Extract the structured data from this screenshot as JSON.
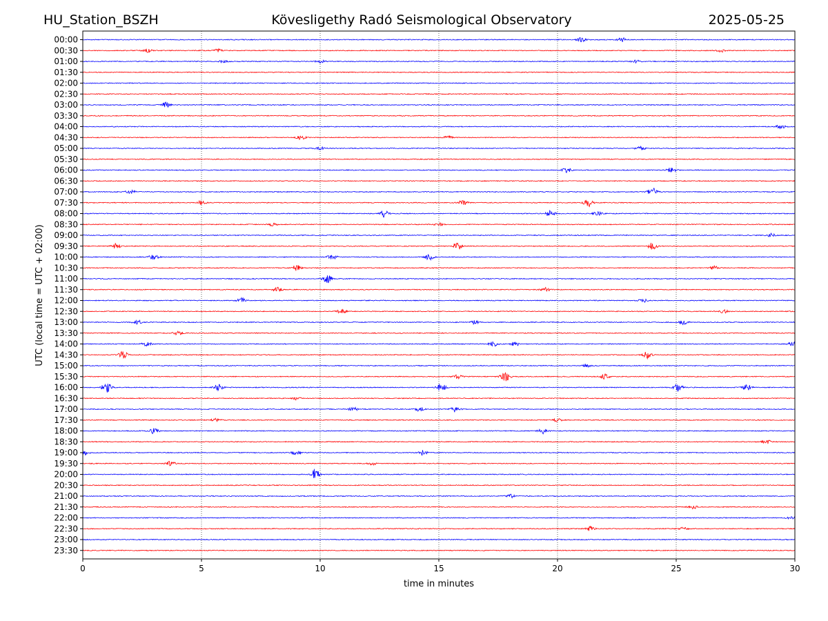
{
  "chart_data": {
    "type": "line",
    "title_left": "HU_Station_BSZH",
    "title_center": "Kövesligethy Radó Seismological Observatory",
    "title_right": "2025-05-25",
    "xlabel": "time in minutes",
    "ylabel": "UTC (local time = UTC + 02:00)",
    "xlim": [
      0,
      30
    ],
    "x_ticks": [
      0,
      5,
      10,
      15,
      20,
      25,
      30
    ],
    "grid": "vertical dotted lines at x ticks",
    "colors": {
      "even_rows": "#0000ff",
      "odd_rows": "#ff0000",
      "axis": "#000000"
    },
    "rows": [
      {
        "label": "00:00",
        "events": [
          {
            "t": 21.0,
            "amp": 3
          },
          {
            "t": 22.7,
            "amp": 3
          }
        ]
      },
      {
        "label": "00:30",
        "events": [
          {
            "t": 2.7,
            "amp": 2.5
          },
          {
            "t": 5.7,
            "amp": 2
          },
          {
            "t": 26.9,
            "amp": 2
          }
        ]
      },
      {
        "label": "01:00",
        "events": [
          {
            "t": 5.9,
            "amp": 2
          },
          {
            "t": 10.0,
            "amp": 2
          },
          {
            "t": 23.3,
            "amp": 2
          }
        ]
      },
      {
        "label": "01:30",
        "events": []
      },
      {
        "label": "02:00",
        "events": []
      },
      {
        "label": "02:30",
        "events": []
      },
      {
        "label": "03:00",
        "events": [
          {
            "t": 3.5,
            "amp": 4
          }
        ]
      },
      {
        "label": "03:30",
        "events": []
      },
      {
        "label": "04:00",
        "events": [
          {
            "t": 29.4,
            "amp": 3
          }
        ]
      },
      {
        "label": "04:30",
        "events": [
          {
            "t": 9.2,
            "amp": 3
          },
          {
            "t": 15.4,
            "amp": 2
          }
        ]
      },
      {
        "label": "05:00",
        "events": [
          {
            "t": 10.0,
            "amp": 2
          },
          {
            "t": 23.5,
            "amp": 4
          }
        ]
      },
      {
        "label": "05:30",
        "events": []
      },
      {
        "label": "06:00",
        "events": [
          {
            "t": 20.4,
            "amp": 4
          },
          {
            "t": 24.8,
            "amp": 4
          }
        ]
      },
      {
        "label": "06:30",
        "events": []
      },
      {
        "label": "07:00",
        "events": [
          {
            "t": 2.0,
            "amp": 3
          },
          {
            "t": 24.0,
            "amp": 6
          }
        ]
      },
      {
        "label": "07:30",
        "events": [
          {
            "t": 5.0,
            "amp": 3
          },
          {
            "t": 16.0,
            "amp": 4
          },
          {
            "t": 21.3,
            "amp": 6
          }
        ]
      },
      {
        "label": "08:00",
        "events": [
          {
            "t": 12.7,
            "amp": 5
          },
          {
            "t": 19.7,
            "amp": 5
          },
          {
            "t": 21.7,
            "amp": 3
          }
        ]
      },
      {
        "label": "08:30",
        "events": [
          {
            "t": 8.0,
            "amp": 2
          },
          {
            "t": 15.0,
            "amp": 2
          }
        ]
      },
      {
        "label": "09:00",
        "events": [
          {
            "t": 29.0,
            "amp": 2.5
          }
        ]
      },
      {
        "label": "09:30",
        "events": [
          {
            "t": 1.4,
            "amp": 4
          },
          {
            "t": 15.8,
            "amp": 5
          },
          {
            "t": 24.0,
            "amp": 5
          }
        ]
      },
      {
        "label": "10:00",
        "events": [
          {
            "t": 3.0,
            "amp": 4
          },
          {
            "t": 10.5,
            "amp": 4
          },
          {
            "t": 14.6,
            "amp": 4
          }
        ]
      },
      {
        "label": "10:30",
        "events": [
          {
            "t": 9.0,
            "amp": 4
          },
          {
            "t": 26.6,
            "amp": 2.5
          }
        ]
      },
      {
        "label": "11:00",
        "events": [
          {
            "t": 10.3,
            "amp": 6
          }
        ]
      },
      {
        "label": "11:30",
        "events": [
          {
            "t": 8.2,
            "amp": 3
          },
          {
            "t": 19.5,
            "amp": 3
          }
        ]
      },
      {
        "label": "12:00",
        "events": [
          {
            "t": 6.7,
            "amp": 4
          },
          {
            "t": 23.6,
            "amp": 2.5
          }
        ]
      },
      {
        "label": "12:30",
        "events": [
          {
            "t": 10.9,
            "amp": 3
          },
          {
            "t": 27.0,
            "amp": 2.5
          }
        ]
      },
      {
        "label": "13:00",
        "events": [
          {
            "t": 2.3,
            "amp": 3
          },
          {
            "t": 16.5,
            "amp": 2.5
          },
          {
            "t": 25.3,
            "amp": 3
          }
        ]
      },
      {
        "label": "13:30",
        "events": [
          {
            "t": 4.0,
            "amp": 2.5
          }
        ]
      },
      {
        "label": "14:00",
        "events": [
          {
            "t": 2.7,
            "amp": 3
          },
          {
            "t": 17.3,
            "amp": 4
          },
          {
            "t": 18.2,
            "amp": 3
          },
          {
            "t": 29.9,
            "amp": 3
          }
        ]
      },
      {
        "label": "14:30",
        "events": [
          {
            "t": 1.7,
            "amp": 5
          },
          {
            "t": 23.8,
            "amp": 5
          }
        ]
      },
      {
        "label": "15:00",
        "events": [
          {
            "t": 21.2,
            "amp": 2.5
          }
        ]
      },
      {
        "label": "15:30",
        "events": [
          {
            "t": 15.8,
            "amp": 3
          },
          {
            "t": 17.8,
            "amp": 7
          },
          {
            "t": 22.0,
            "amp": 4
          }
        ]
      },
      {
        "label": "16:00",
        "events": [
          {
            "t": 1.0,
            "amp": 8
          },
          {
            "t": 5.7,
            "amp": 5
          },
          {
            "t": 15.1,
            "amp": 6
          },
          {
            "t": 25.1,
            "amp": 6
          },
          {
            "t": 28.0,
            "amp": 4
          }
        ]
      },
      {
        "label": "16:30",
        "events": [
          {
            "t": 9.0,
            "amp": 2
          }
        ]
      },
      {
        "label": "17:00",
        "events": [
          {
            "t": 11.4,
            "amp": 3
          },
          {
            "t": 14.2,
            "amp": 3
          },
          {
            "t": 15.7,
            "amp": 4
          }
        ]
      },
      {
        "label": "17:30",
        "events": [
          {
            "t": 5.6,
            "amp": 2
          },
          {
            "t": 20.0,
            "amp": 2
          }
        ]
      },
      {
        "label": "18:00",
        "events": [
          {
            "t": 3.0,
            "amp": 4
          },
          {
            "t": 19.4,
            "amp": 4
          }
        ]
      },
      {
        "label": "18:30",
        "events": [
          {
            "t": 28.8,
            "amp": 3
          }
        ]
      },
      {
        "label": "19:00",
        "events": [
          {
            "t": 0.1,
            "amp": 3
          },
          {
            "t": 9.0,
            "amp": 3
          },
          {
            "t": 14.3,
            "amp": 4
          }
        ]
      },
      {
        "label": "19:30",
        "events": [
          {
            "t": 3.7,
            "amp": 3
          },
          {
            "t": 12.2,
            "amp": 2
          }
        ]
      },
      {
        "label": "20:00",
        "events": [
          {
            "t": 9.8,
            "amp": 8
          }
        ]
      },
      {
        "label": "20:30",
        "events": []
      },
      {
        "label": "21:00",
        "events": [
          {
            "t": 18.0,
            "amp": 2.5
          }
        ]
      },
      {
        "label": "21:30",
        "events": [
          {
            "t": 25.7,
            "amp": 2.5
          }
        ]
      },
      {
        "label": "22:00",
        "events": [
          {
            "t": 29.8,
            "amp": 2
          }
        ]
      },
      {
        "label": "22:30",
        "events": [
          {
            "t": 21.4,
            "amp": 3
          },
          {
            "t": 25.3,
            "amp": 2
          }
        ]
      },
      {
        "label": "23:00",
        "events": []
      },
      {
        "label": "23:30",
        "events": []
      }
    ]
  }
}
